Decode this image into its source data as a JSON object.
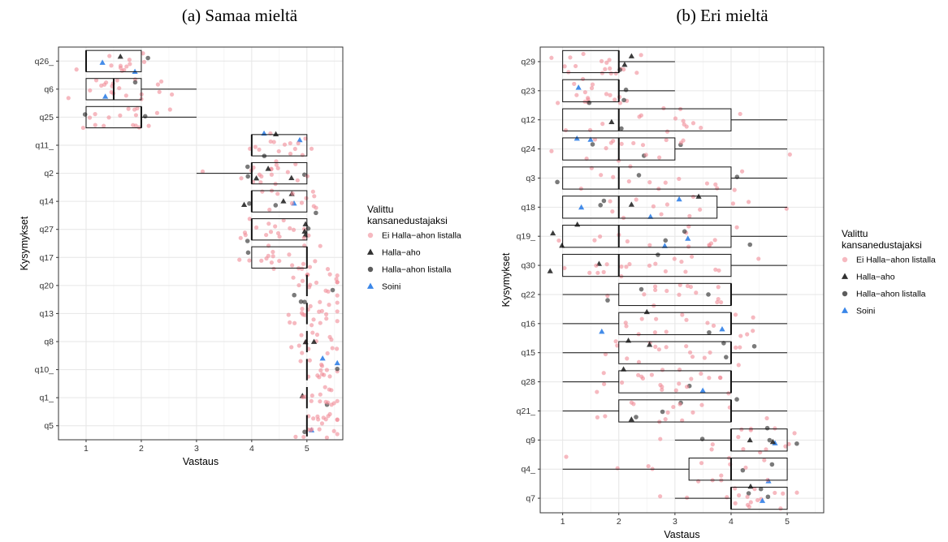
{
  "colors": {
    "ei_halla_ahon_listalla": "#F08A96",
    "halla_aho": "#1a1a1a",
    "halla_ahon_listalla": "#333333",
    "soini": "#3A86E8"
  },
  "chart_data": [
    {
      "type": "box",
      "title": "(a) Samaa mieltä",
      "xlabel": "Vastaus",
      "ylabel": "Kysymykset",
      "xticks": [
        1,
        2,
        3,
        4,
        5
      ],
      "xlim": [
        0.5,
        5.65
      ],
      "grid": true,
      "legend_position": "right",
      "legend_title": "Valittu kansanedustajaksi",
      "categories": [
        "q26_",
        "q6",
        "q25",
        "q11_",
        "q2",
        "q14",
        "q27",
        "q17",
        "q20",
        "q13",
        "q8",
        "q10_",
        "q1_",
        "q5"
      ],
      "boxes": [
        {
          "q": "q26_",
          "whisker_low": 1,
          "q1": 1,
          "median": 1,
          "q3": 2,
          "whisker_high": 2
        },
        {
          "q": "q6",
          "whisker_low": 1,
          "q1": 1,
          "median": 1.5,
          "q3": 2,
          "whisker_high": 3
        },
        {
          "q": "q25",
          "whisker_low": 1,
          "q1": 1,
          "median": 2,
          "q3": 2,
          "whisker_high": 3
        },
        {
          "q": "q11_",
          "whisker_low": 4,
          "q1": 4,
          "median": 4,
          "q3": 5,
          "whisker_high": 5
        },
        {
          "q": "q2",
          "whisker_low": 3,
          "q1": 4,
          "median": 4,
          "q3": 5,
          "whisker_high": 5
        },
        {
          "q": "q14",
          "whisker_low": 4,
          "q1": 4,
          "median": 4,
          "q3": 5,
          "whisker_high": 5
        },
        {
          "q": "q27",
          "whisker_low": 4,
          "q1": 4,
          "median": 4,
          "q3": 5,
          "whisker_high": 5
        },
        {
          "q": "q17",
          "whisker_low": 4,
          "q1": 4,
          "median": 5,
          "q3": 5,
          "whisker_high": 5
        },
        {
          "q": "q20",
          "whisker_low": 5,
          "q1": 5,
          "median": 5,
          "q3": 5,
          "whisker_high": 5
        },
        {
          "q": "q13",
          "whisker_low": 5,
          "q1": 5,
          "median": 5,
          "q3": 5,
          "whisker_high": 5
        },
        {
          "q": "q8",
          "whisker_low": 5,
          "q1": 5,
          "median": 5,
          "q3": 5,
          "whisker_high": 5
        },
        {
          "q": "q10_",
          "whisker_low": 5,
          "q1": 5,
          "median": 5,
          "q3": 5,
          "whisker_high": 5
        },
        {
          "q": "q1_",
          "whisker_low": 5,
          "q1": 5,
          "median": 5,
          "q3": 5,
          "whisker_high": 5
        },
        {
          "q": "q5",
          "whisker_low": 5,
          "q1": 5,
          "median": 5,
          "q3": 5,
          "whisker_high": 5
        }
      ]
    },
    {
      "type": "box",
      "title": "(b) Eri mieltä",
      "xlabel": "Vastaus",
      "ylabel": "Kysymykset",
      "xticks": [
        1,
        2,
        3,
        4,
        5
      ],
      "xlim": [
        0.6,
        5.65
      ],
      "grid": true,
      "legend_position": "right",
      "legend_title": "Valittu kansanedustajaksi",
      "categories": [
        "q29",
        "q23",
        "q12",
        "q24",
        "q3",
        "q18",
        "q19_",
        "q30",
        "q22",
        "q16",
        "q15",
        "q28",
        "q21_",
        "q9",
        "q4_",
        "q7"
      ],
      "boxes": [
        {
          "q": "q29",
          "whisker_low": 1,
          "q1": 1,
          "median": 2,
          "q3": 2,
          "whisker_high": 3
        },
        {
          "q": "q23",
          "whisker_low": 1,
          "q1": 1,
          "median": 2,
          "q3": 2,
          "whisker_high": 3
        },
        {
          "q": "q12",
          "whisker_low": 1,
          "q1": 1,
          "median": 2,
          "q3": 4,
          "whisker_high": 5
        },
        {
          "q": "q24",
          "whisker_low": 1,
          "q1": 1,
          "median": 2,
          "q3": 3,
          "whisker_high": 5
        },
        {
          "q": "q3",
          "whisker_low": 1,
          "q1": 1,
          "median": 2,
          "q3": 4,
          "whisker_high": 5
        },
        {
          "q": "q18",
          "whisker_low": 1,
          "q1": 1,
          "median": 2,
          "q3": 3.75,
          "whisker_high": 5
        },
        {
          "q": "q19_",
          "whisker_low": 1,
          "q1": 1,
          "median": 2,
          "q3": 4,
          "whisker_high": 5
        },
        {
          "q": "q30",
          "whisker_low": 1,
          "q1": 1,
          "median": 2,
          "q3": 4,
          "whisker_high": 5
        },
        {
          "q": "q22",
          "whisker_low": 1,
          "q1": 2,
          "median": 4,
          "q3": 4,
          "whisker_high": 5
        },
        {
          "q": "q16",
          "whisker_low": 1,
          "q1": 2,
          "median": 4,
          "q3": 4,
          "whisker_high": 5
        },
        {
          "q": "q15",
          "whisker_low": 1,
          "q1": 2,
          "median": 4,
          "q3": 4,
          "whisker_high": 5
        },
        {
          "q": "q28",
          "whisker_low": 1,
          "q1": 2,
          "median": 4,
          "q3": 4,
          "whisker_high": 5
        },
        {
          "q": "q21_",
          "whisker_low": 1,
          "q1": 2,
          "median": 4,
          "q3": 4,
          "whisker_high": 5
        },
        {
          "q": "q9",
          "whisker_low": 3,
          "q1": 4,
          "median": 4,
          "q3": 5,
          "whisker_high": 5
        },
        {
          "q": "q4_",
          "whisker_low": 1,
          "q1": 3.25,
          "median": 4,
          "q3": 5,
          "whisker_high": 5
        },
        {
          "q": "q7",
          "whisker_low": 3,
          "q1": 4,
          "median": 4,
          "q3": 5,
          "whisker_high": 5
        }
      ]
    }
  ],
  "legend": {
    "title": "Valittu\nkansanedustajaksi",
    "items": [
      {
        "label": "Ei Halla−ahon listalla",
        "shape": "circle",
        "color": "#F08A96",
        "opacity": 0.6
      },
      {
        "label": "Halla−aho",
        "shape": "triangle",
        "color": "#1a1a1a",
        "opacity": 0.9
      },
      {
        "label": "Halla−ahon listalla",
        "shape": "circle",
        "color": "#333333",
        "opacity": 0.8
      },
      {
        "label": "Soini",
        "shape": "triangle",
        "color": "#3A86E8",
        "opacity": 1.0
      }
    ]
  }
}
